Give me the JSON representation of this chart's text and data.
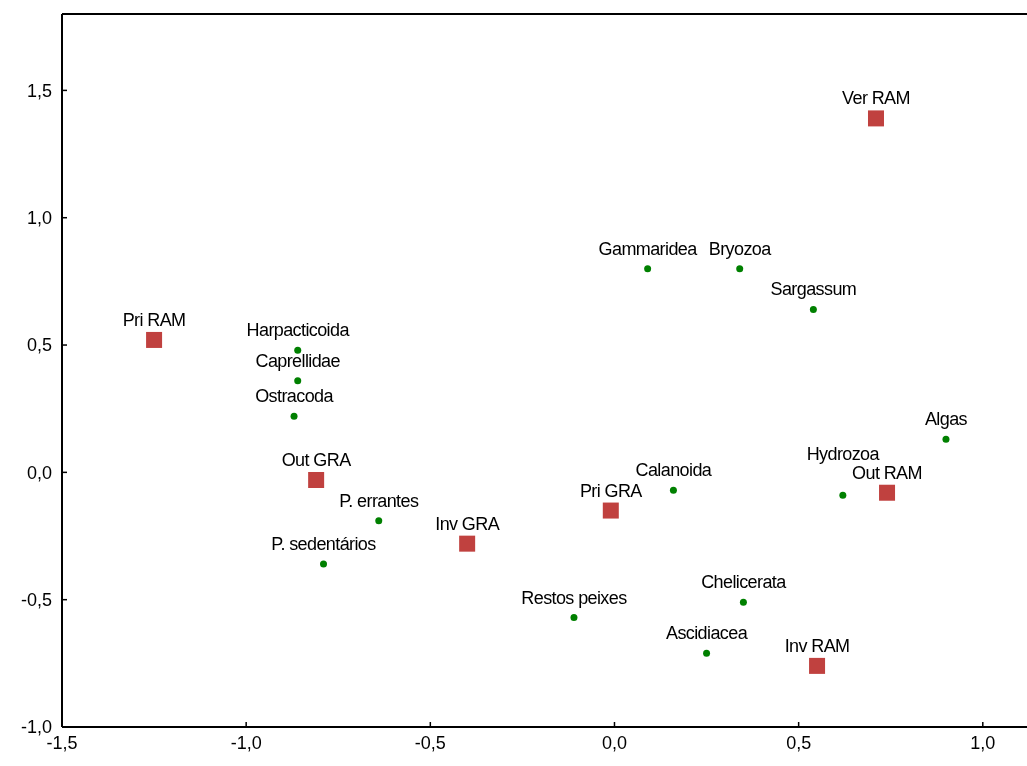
{
  "chart_data": {
    "type": "scatter",
    "xlim": [
      -1.5,
      1.12
    ],
    "ylim": [
      -1.0,
      1.8
    ],
    "xticks": [
      {
        "value": -1.5,
        "label": "-1,5"
      },
      {
        "value": -1.0,
        "label": "-1,0"
      },
      {
        "value": -0.5,
        "label": "-0,5"
      },
      {
        "value": 0.0,
        "label": "0,0"
      },
      {
        "value": 0.5,
        "label": "0,5"
      },
      {
        "value": 1.0,
        "label": "1,0"
      }
    ],
    "yticks": [
      {
        "value": -1.0,
        "label": "-1,0"
      },
      {
        "value": -0.5,
        "label": "-0,5"
      },
      {
        "value": 0.0,
        "label": "0,0"
      },
      {
        "value": 0.5,
        "label": "0,5"
      },
      {
        "value": 1.0,
        "label": "1,0"
      },
      {
        "value": 1.5,
        "label": "1,5"
      }
    ],
    "grid": false,
    "series": [
      {
        "color": "#c0413f",
        "marker": "square",
        "x": [
          -1.25,
          -0.81,
          -0.4,
          -0.01,
          0.74,
          0.55,
          0.71
        ],
        "values": [
          0.52,
          -0.03,
          -0.28,
          -0.15,
          -0.08,
          -0.76,
          1.39
        ]
      },
      {
        "color": "#008000",
        "marker": "circle",
        "x": [
          -0.86,
          -0.86,
          -0.87,
          -0.64,
          -0.79,
          0.09,
          0.34,
          0.54,
          0.9,
          0.16,
          0.62,
          0.35,
          -0.11,
          0.25
        ],
        "values": [
          0.48,
          0.36,
          0.22,
          -0.19,
          -0.36,
          0.8,
          0.8,
          0.64,
          0.13,
          -0.07,
          -0.09,
          -0.51,
          -0.57,
          -0.71
        ]
      }
    ],
    "annotations": [
      {
        "text": "Pri RAM",
        "x": -1.25,
        "y": 0.52
      },
      {
        "text": "Out GRA",
        "x": -0.81,
        "y": -0.03
      },
      {
        "text": "Inv GRA",
        "x": -0.4,
        "y": -0.28
      },
      {
        "text": "Pri GRA",
        "x": -0.01,
        "y": -0.15
      },
      {
        "text": "Out RAM",
        "x": 0.74,
        "y": -0.08
      },
      {
        "text": "Inv RAM",
        "x": 0.55,
        "y": -0.76
      },
      {
        "text": "Ver RAM",
        "x": 0.71,
        "y": 1.39
      },
      {
        "text": "Harpacticoida",
        "x": -0.86,
        "y": 0.48
      },
      {
        "text": "Caprellidae",
        "x": -0.86,
        "y": 0.36
      },
      {
        "text": "Ostracoda",
        "x": -0.87,
        "y": 0.22
      },
      {
        "text": "P. errantes",
        "x": -0.64,
        "y": -0.19
      },
      {
        "text": "P. sedentários",
        "x": -0.79,
        "y": -0.36
      },
      {
        "text": "Gammaridea",
        "x": 0.09,
        "y": 0.8
      },
      {
        "text": "Bryozoa",
        "x": 0.34,
        "y": 0.8
      },
      {
        "text": "Sargassum",
        "x": 0.54,
        "y": 0.64
      },
      {
        "text": "Algas",
        "x": 0.9,
        "y": 0.13
      },
      {
        "text": "Calanoida",
        "x": 0.16,
        "y": -0.07
      },
      {
        "text": "Hydrozoa",
        "x": 0.62,
        "y": -0.09
      },
      {
        "text": "Chelicerata",
        "x": 0.35,
        "y": -0.51
      },
      {
        "text": "Restos peixes",
        "x": -0.11,
        "y": -0.57
      },
      {
        "text": "Ascidiacea",
        "x": 0.25,
        "y": -0.71
      }
    ]
  }
}
